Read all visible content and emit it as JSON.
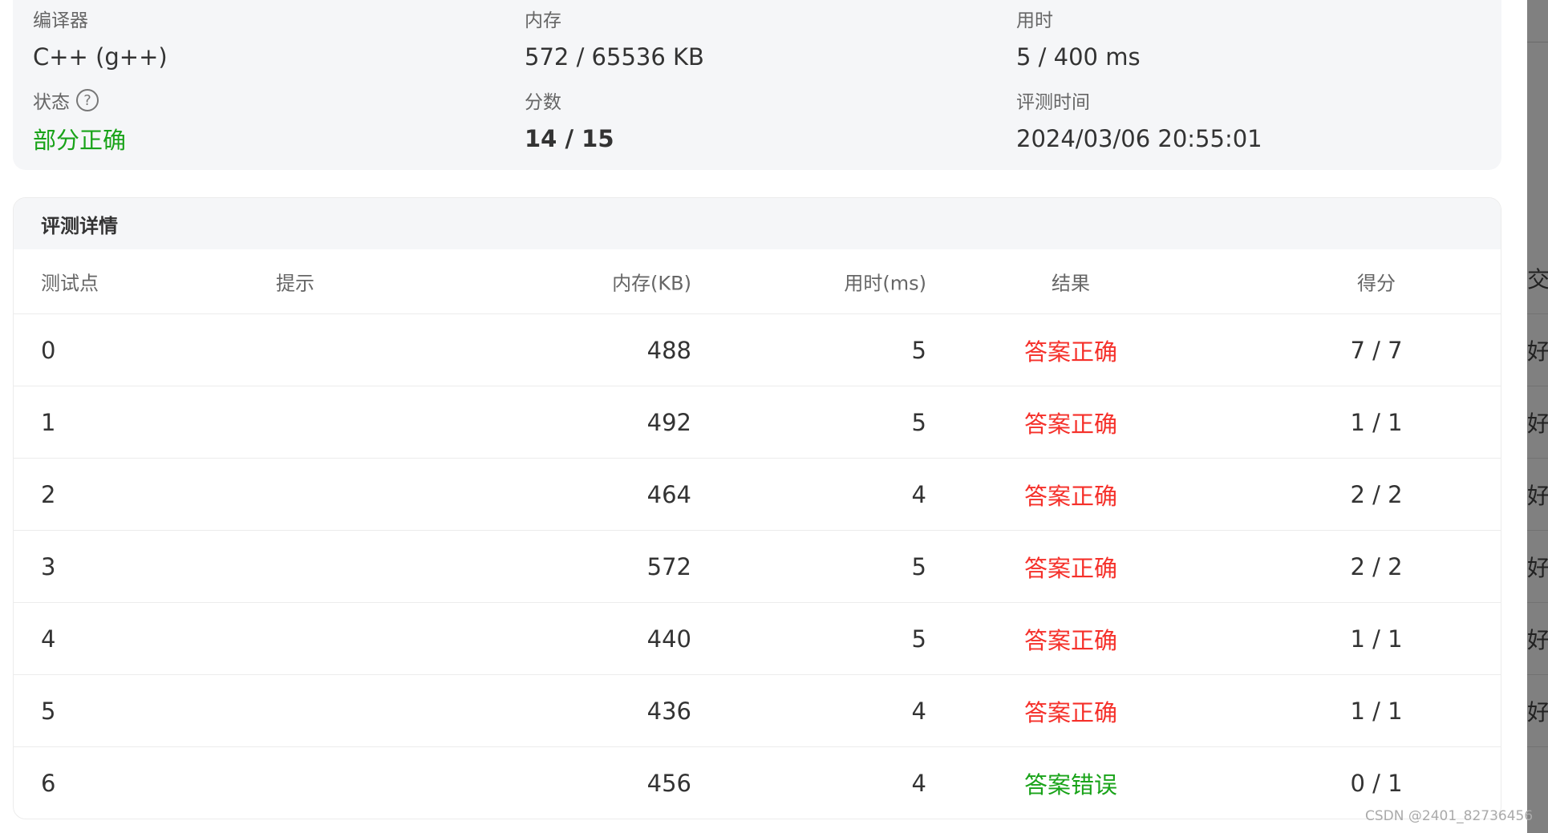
{
  "summary": {
    "compiler": {
      "label": "编译器",
      "value": "C++ (g++)"
    },
    "memory": {
      "label": "内存",
      "value": "572 / 65536 KB"
    },
    "time": {
      "label": "用时",
      "value": "5 / 400 ms"
    },
    "status": {
      "label": "状态",
      "value": "部分正确",
      "help_icon": "question-circle-icon",
      "color": "#19a319"
    },
    "score": {
      "label": "分数",
      "value": "14 / 15"
    },
    "judge_time": {
      "label": "评测时间",
      "value": "2024/03/06 20:55:01"
    }
  },
  "details": {
    "title": "评测详情",
    "columns": [
      "测试点",
      "提示",
      "内存(KB)",
      "用时(ms)",
      "结果",
      "得分"
    ],
    "rows": [
      {
        "id": "0",
        "hint": "",
        "memory": "488",
        "time": "5",
        "result": "答案正确",
        "score": "7 / 7"
      },
      {
        "id": "1",
        "hint": "",
        "memory": "492",
        "time": "5",
        "result": "答案正确",
        "score": "1 / 1"
      },
      {
        "id": "2",
        "hint": "",
        "memory": "464",
        "time": "4",
        "result": "答案正确",
        "score": "2 / 2"
      },
      {
        "id": "3",
        "hint": "",
        "memory": "572",
        "time": "5",
        "result": "答案正确",
        "score": "2 / 2"
      },
      {
        "id": "4",
        "hint": "",
        "memory": "440",
        "time": "5",
        "result": "答案正确",
        "score": "1 / 1"
      },
      {
        "id": "5",
        "hint": "",
        "memory": "436",
        "time": "4",
        "result": "答案正确",
        "score": "1 / 1"
      },
      {
        "id": "6",
        "hint": "",
        "memory": "456",
        "time": "4",
        "result": "答案错误",
        "score": "0 / 1"
      }
    ],
    "colors": {
      "correct": "#f5302a",
      "wrong": "#19a319"
    }
  },
  "side_panel": {
    "items": [
      "交",
      "好",
      "好",
      "好",
      "好",
      "好",
      "好"
    ]
  },
  "watermark": "CSDN @2401_82736456"
}
